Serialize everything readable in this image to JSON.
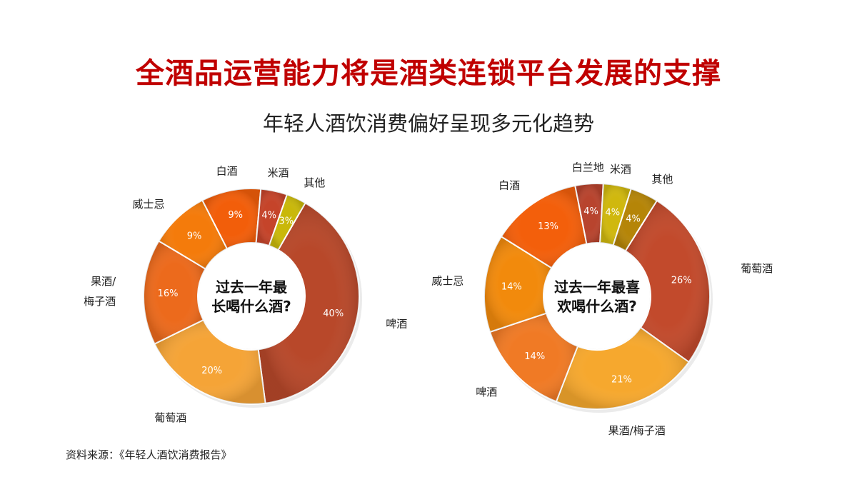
{
  "title": "全酒品运营能力将是酒类连锁平台发展的支撑",
  "subtitle": "年轻人酒饮消费偏好呈现多元化趋势",
  "source": "资料来源：《年轻人酒饮消费报告》",
  "chart_data": [
    {
      "type": "pie",
      "donut": true,
      "center_label": [
        "过去一年最",
        "长喝什么酒?"
      ],
      "slices": [
        {
          "label": "啤酒",
          "value": 40,
          "value_label": "40%",
          "color": "#b8482a"
        },
        {
          "label": "葡萄酒",
          "value": 20,
          "value_label": "20%",
          "color": "#f5a437"
        },
        {
          "label": "果酒/梅子酒",
          "label_lines": [
            "果酒/",
            "梅子酒"
          ],
          "value": 16,
          "value_label": "16%",
          "color": "#ec6a1c"
        },
        {
          "label": "威士忌",
          "value": 9,
          "value_label": "9%",
          "color": "#f47b0b"
        },
        {
          "label": "白酒",
          "value": 9,
          "value_label": "9%",
          "color": "#f25e0a"
        },
        {
          "label": "米酒",
          "value": 4,
          "value_label": "4%",
          "color": "#c5442a"
        },
        {
          "label": "其他",
          "value": 3,
          "value_label": "3%",
          "color": "#c9b80a"
        }
      ]
    },
    {
      "type": "pie",
      "donut": true,
      "center_label": [
        "过去一年最喜",
        "欢喝什么酒?"
      ],
      "slices": [
        {
          "label": "葡萄酒",
          "value": 26,
          "value_label": "26%",
          "color": "#c24a2c"
        },
        {
          "label": "果酒/梅子酒",
          "value": 21,
          "value_label": "21%",
          "color": "#f6a82e"
        },
        {
          "label": "啤酒",
          "value": 14,
          "value_label": "14%",
          "color": "#f07a25"
        },
        {
          "label": "威士忌",
          "value": 14,
          "value_label": "14%",
          "color": "#f28a0c"
        },
        {
          "label": "白酒",
          "value": 13,
          "value_label": "13%",
          "color": "#f35f0b"
        },
        {
          "label": "白兰地",
          "value": 4,
          "value_label": "4%",
          "color": "#b8442e"
        },
        {
          "label": "米酒",
          "value": 4,
          "value_label": "4%",
          "color": "#d0b80e"
        },
        {
          "label": "其他",
          "value": 4,
          "value_label": "4%",
          "color": "#b58508"
        }
      ]
    }
  ]
}
